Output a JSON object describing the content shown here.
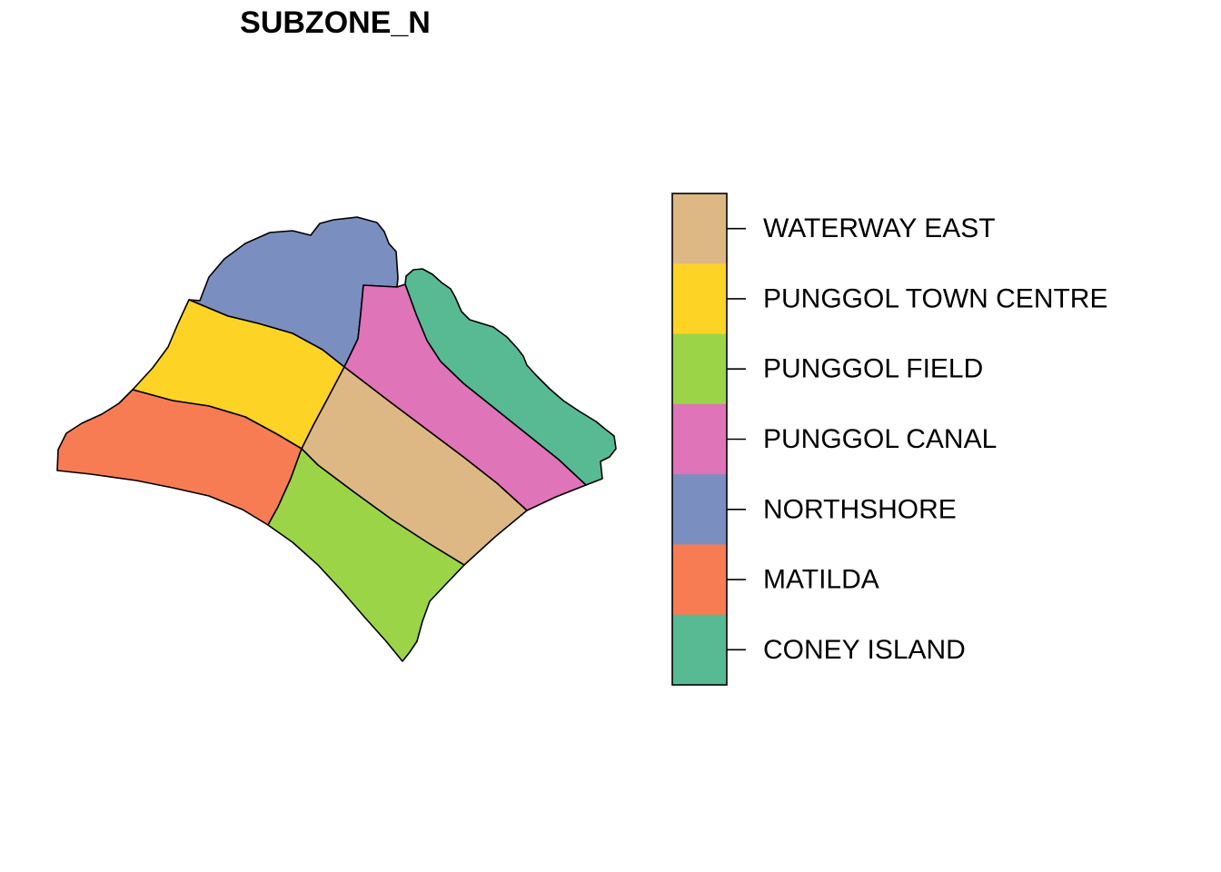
{
  "title": "SUBZONE_N",
  "legend": {
    "entries": [
      {
        "key": "waterway-east",
        "label": "WATERWAY EAST",
        "color": "#DDB885"
      },
      {
        "key": "punggol-town-centre",
        "label": "PUNGGOL TOWN CENTRE",
        "color": "#FDD426"
      },
      {
        "key": "punggol-field",
        "label": "PUNGGOL FIELD",
        "color": "#9BD547"
      },
      {
        "key": "punggol-canal",
        "label": "PUNGGOL CANAL",
        "color": "#E074B8"
      },
      {
        "key": "northshore",
        "label": "NORTHSHORE",
        "color": "#7B8EC0"
      },
      {
        "key": "matilda",
        "label": "MATILDA",
        "color": "#F87C53"
      },
      {
        "key": "coney-island",
        "label": "CONEY ISLAND",
        "color": "#58BA93"
      }
    ]
  }
}
